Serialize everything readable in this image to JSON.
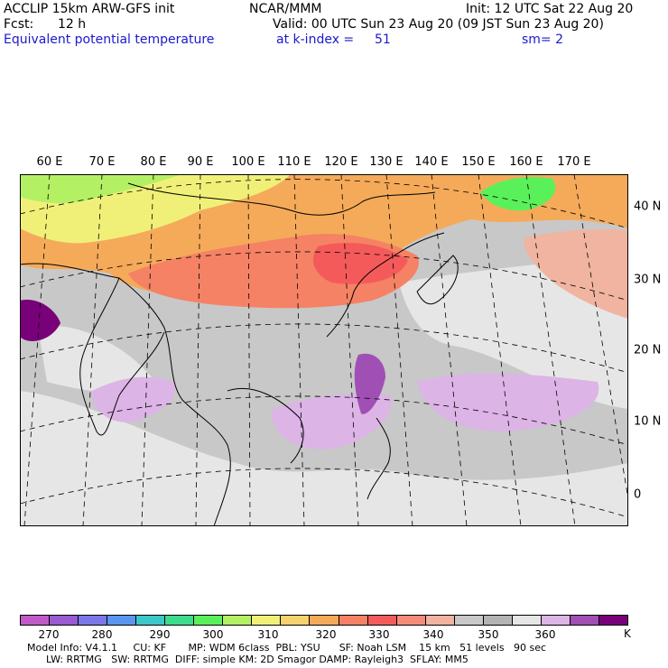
{
  "header": {
    "model": "ACCLIP 15km ARW-GFS init",
    "center": "NCAR/MMM",
    "init": "Init: 12 UTC Sat 22 Aug 20",
    "fcst_label": "Fcst:",
    "fcst_value": "12 h",
    "valid": "Valid: 00 UTC Sun 23 Aug 20 (09 JST Sun 23 Aug 20)",
    "field": "Equivalent potential temperature",
    "level": "at k-index =",
    "level_value": "51",
    "smooth": "sm= 2"
  },
  "map": {
    "lon_labels": [
      "60 E",
      "70 E",
      "80 E",
      "90 E",
      "100 E",
      "110 E",
      "120 E",
      "130 E",
      "140 E",
      "150 E",
      "160 E",
      "170 E"
    ],
    "lat_labels": [
      "40 N",
      "30 N",
      "20 N",
      "10 N",
      "0"
    ],
    "colors": {
      "land_outline": "#000000",
      "grid": "#000000",
      "background_gray": "#c8c8c8"
    }
  },
  "colorbar": {
    "unit": "K",
    "ticks": [
      "270",
      "280",
      "290",
      "300",
      "310",
      "320",
      "330",
      "340",
      "350",
      "360"
    ],
    "colors": [
      "#c05ac8",
      "#9a5ad2",
      "#7a78e8",
      "#5a96f0",
      "#3cc8c8",
      "#3cdc8c",
      "#5af05a",
      "#b4f064",
      "#f0f078",
      "#f5d26e",
      "#f5aa5a",
      "#f58264",
      "#f55a5a",
      "#f58c78",
      "#f0b4a0",
      "#c8c8c8",
      "#b4b4b4",
      "#e6e6e6",
      "#dcb4e6",
      "#a050b4",
      "#780078"
    ]
  },
  "footer": {
    "line1": "Model Info: V4.1.1     CU: KF       MP: WDM 6class  PBL: YSU      SF: Noah LSM    15 km   51 levels   90 sec",
    "line2": "      LW: RRTMG   SW: RRTMG  DIFF: simple KM: 2D Smagor DAMP: Rayleigh3  SFLAY: MM5"
  }
}
